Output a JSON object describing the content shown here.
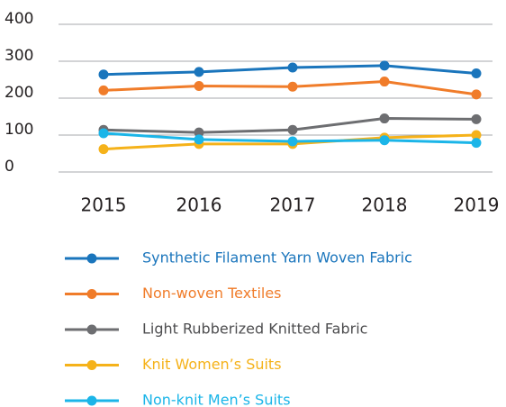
{
  "chart_data": {
    "type": "line",
    "categories": [
      "2015",
      "2016",
      "2017",
      "2018",
      "2019"
    ],
    "series": [
      {
        "name": "Synthetic Filament Yarn Woven Fabric",
        "color": "#1a75bc",
        "values": [
          264,
          271,
          283,
          288,
          267
        ]
      },
      {
        "name": "Non-woven Textiles",
        "color": "#f07c2a",
        "values": [
          221,
          233,
          231,
          245,
          210
        ]
      },
      {
        "name": "Light Rubberized Knitted Fabric",
        "color": "#6d6e71",
        "values": [
          114,
          107,
          114,
          145,
          143
        ]
      },
      {
        "name": "Knit Women’s Suits",
        "color": "#f5b21a",
        "values": [
          62,
          76,
          76,
          93,
          100
        ]
      },
      {
        "name": "Non-knit Men’s Suits",
        "color": "#1bb5e8",
        "values": [
          105,
          88,
          83,
          86,
          79
        ]
      }
    ],
    "ylim": [
      0,
      400
    ],
    "yticks": [
      0,
      100,
      200,
      300,
      400
    ],
    "grid": true
  }
}
